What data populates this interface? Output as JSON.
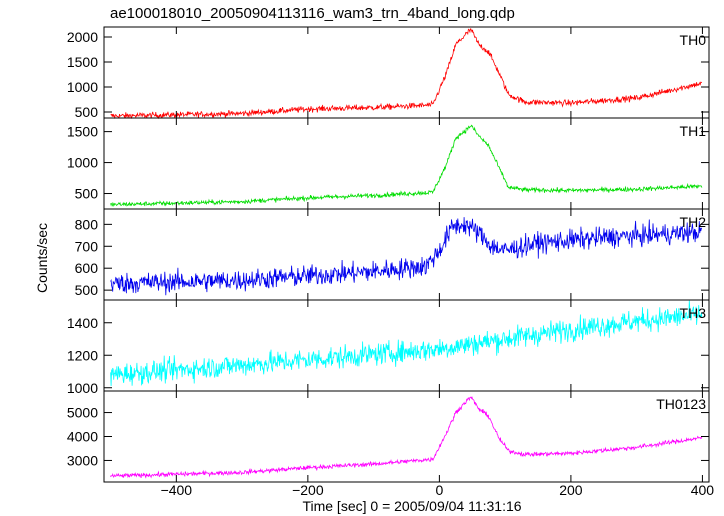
{
  "title": "ae100018010_20050904113116_wam3_trn_4band_long.qdp",
  "chart_data": {
    "type": "line",
    "title": "ae100018010_20050904113116_wam3_trn_4band_long.qdp",
    "xlabel": "Time [sec] 0 = 2005/09/04 11:31:16",
    "ylabel": "Counts/sec",
    "xlim": [
      -510,
      410
    ],
    "xticks": [
      -400,
      -200,
      0,
      200,
      400
    ],
    "grid": false,
    "panels": [
      {
        "name": "TH0",
        "color": "#ff0000",
        "ylim": [
          380,
          2200
        ],
        "yticks": [
          500,
          1000,
          1500,
          2000
        ],
        "noise": 30,
        "points": [
          [
            -500,
            420
          ],
          [
            -300,
            470
          ],
          [
            -200,
            560
          ],
          [
            -100,
            590
          ],
          [
            -10,
            640
          ],
          [
            10,
            1250
          ],
          [
            25,
            1850
          ],
          [
            40,
            2050
          ],
          [
            48,
            2150
          ],
          [
            60,
            1850
          ],
          [
            75,
            1700
          ],
          [
            90,
            1300
          ],
          [
            105,
            850
          ],
          [
            130,
            700
          ],
          [
            200,
            680
          ],
          [
            300,
            780
          ],
          [
            400,
            1080
          ]
        ]
      },
      {
        "name": "TH1",
        "color": "#00dd00",
        "ylim": [
          250,
          1720
        ],
        "yticks": [
          500,
          1000,
          1500
        ],
        "noise": 18,
        "points": [
          [
            -500,
            320
          ],
          [
            -300,
            370
          ],
          [
            -200,
            430
          ],
          [
            -100,
            470
          ],
          [
            -10,
            520
          ],
          [
            10,
            950
          ],
          [
            25,
            1400
          ],
          [
            40,
            1520
          ],
          [
            48,
            1600
          ],
          [
            60,
            1430
          ],
          [
            75,
            1270
          ],
          [
            90,
            930
          ],
          [
            105,
            600
          ],
          [
            130,
            560
          ],
          [
            200,
            550
          ],
          [
            300,
            570
          ],
          [
            400,
            620
          ]
        ]
      },
      {
        "name": "TH2",
        "color": "#0000ee",
        "ylim": [
          455,
          870
        ],
        "yticks": [
          500,
          600,
          700,
          800
        ],
        "noise": 24,
        "points": [
          [
            -500,
            530
          ],
          [
            -300,
            545
          ],
          [
            -200,
            565
          ],
          [
            -100,
            585
          ],
          [
            -20,
            610
          ],
          [
            0,
            680
          ],
          [
            20,
            790
          ],
          [
            40,
            800
          ],
          [
            60,
            760
          ],
          [
            80,
            700
          ],
          [
            100,
            680
          ],
          [
            150,
            715
          ],
          [
            250,
            740
          ],
          [
            400,
            765
          ]
        ]
      },
      {
        "name": "TH3",
        "color": "#00ffff",
        "ylim": [
          980,
          1540
        ],
        "yticks": [
          1000,
          1200,
          1400
        ],
        "noise": 35,
        "points": [
          [
            -500,
            1080
          ],
          [
            -300,
            1140
          ],
          [
            -100,
            1205
          ],
          [
            0,
            1240
          ],
          [
            100,
            1300
          ],
          [
            200,
            1360
          ],
          [
            300,
            1410
          ],
          [
            400,
            1450
          ]
        ]
      },
      {
        "name": "TH0123",
        "color": "#ff00ff",
        "ylim": [
          2100,
          5900
        ],
        "yticks": [
          3000,
          4000,
          5000
        ],
        "noise": 45,
        "points": [
          [
            -500,
            2350
          ],
          [
            -300,
            2500
          ],
          [
            -200,
            2700
          ],
          [
            -100,
            2850
          ],
          [
            -10,
            3050
          ],
          [
            10,
            4100
          ],
          [
            25,
            5000
          ],
          [
            40,
            5450
          ],
          [
            48,
            5650
          ],
          [
            60,
            5150
          ],
          [
            75,
            4850
          ],
          [
            90,
            3950
          ],
          [
            105,
            3400
          ],
          [
            130,
            3250
          ],
          [
            200,
            3300
          ],
          [
            300,
            3550
          ],
          [
            400,
            3950
          ]
        ]
      }
    ]
  }
}
